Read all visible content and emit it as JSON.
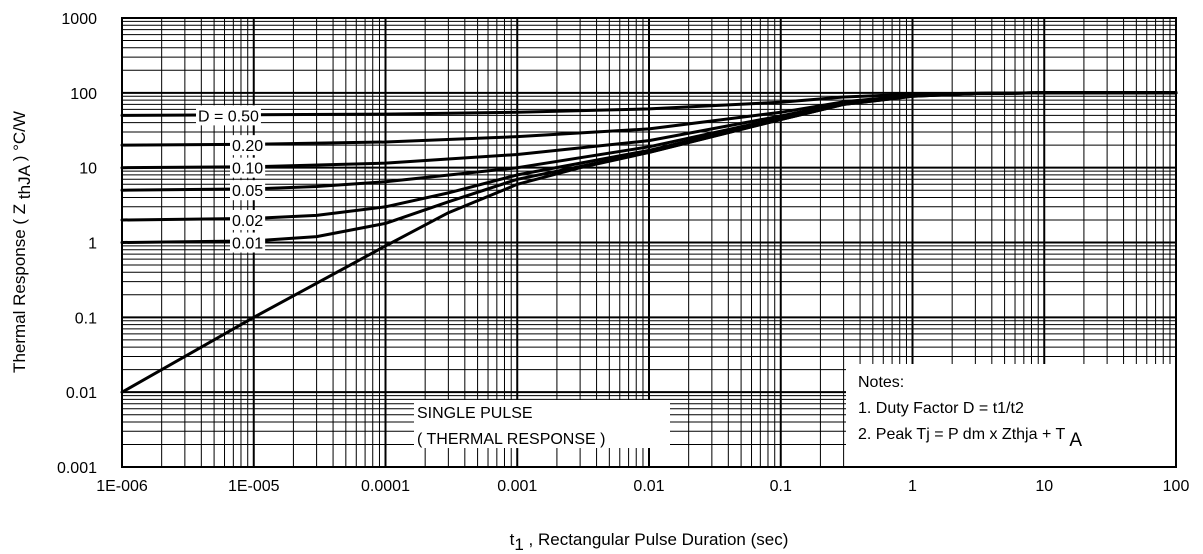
{
  "chart_data": {
    "type": "line",
    "xscale": "log",
    "yscale": "log",
    "xlim": [
      1e-06,
      100
    ],
    "ylim": [
      0.001,
      1000
    ],
    "grid": true,
    "xlabel": {
      "main": "t",
      "sub": "1",
      "rest": " , Rectangular Pulse Duration (sec)"
    },
    "ylabel": {
      "main": "Thermal Response ( Z ",
      "sub": "thJA",
      "rest": " ) °C/W"
    },
    "x_tick_labels": [
      "1E-006",
      "1E-005",
      "0.0001",
      "0.001",
      "0.01",
      "0.1",
      "1",
      "10",
      "100"
    ],
    "y_tick_labels": [
      "0.001",
      "0.01",
      "0.1",
      "1",
      "10",
      "100",
      "1000"
    ],
    "series": [
      {
        "name": "D = 0.50",
        "label": "D = 0.50",
        "x": [
          1e-06,
          1e-05,
          0.0001,
          0.001,
          0.01,
          0.1,
          0.3,
          1,
          3,
          10,
          100
        ],
        "y": [
          50,
          51,
          52,
          55,
          61,
          75,
          88,
          96,
          99,
          100,
          100
        ]
      },
      {
        "name": "0.20",
        "label": "0.20",
        "x": [
          1e-06,
          1e-05,
          0.0001,
          0.001,
          0.01,
          0.1,
          0.3,
          1,
          3,
          10,
          100
        ],
        "y": [
          20,
          20.5,
          22,
          26,
          33,
          55,
          76,
          92,
          98,
          100,
          100
        ]
      },
      {
        "name": "0.10",
        "label": "0.10",
        "x": [
          1e-06,
          1e-05,
          0.0001,
          0.001,
          0.01,
          0.1,
          0.3,
          1,
          3,
          10,
          100
        ],
        "y": [
          10,
          10.3,
          11.5,
          15,
          23,
          49,
          73,
          91,
          98,
          100,
          100
        ]
      },
      {
        "name": "0.05",
        "label": "0.05",
        "x": [
          1e-06,
          1e-05,
          3e-05,
          0.0001,
          0.001,
          0.01,
          0.1,
          0.3,
          1,
          3,
          10,
          100
        ],
        "y": [
          5,
          5.2,
          5.6,
          6.5,
          10,
          19,
          46,
          72,
          91,
          98,
          100,
          100
        ]
      },
      {
        "name": "0.02",
        "label": "0.02",
        "x": [
          1e-06,
          1e-05,
          3e-05,
          0.0001,
          0.0003,
          0.001,
          0.01,
          0.1,
          0.3,
          1,
          3,
          10,
          100
        ],
        "y": [
          2,
          2.1,
          2.3,
          3,
          4.6,
          8,
          17,
          45,
          71,
          91,
          98,
          100,
          100
        ]
      },
      {
        "name": "0.01",
        "label": "0.01",
        "x": [
          1e-06,
          1e-05,
          3e-05,
          0.0001,
          0.0003,
          0.001,
          0.01,
          0.1,
          0.3,
          1,
          3,
          10,
          100
        ],
        "y": [
          1,
          1.05,
          1.2,
          1.8,
          3.5,
          7,
          16,
          44,
          70,
          90,
          98,
          100,
          100
        ]
      },
      {
        "name": "SINGLE PULSE",
        "label": "",
        "x": [
          1e-06,
          1e-05,
          0.0001,
          0.0003,
          0.001,
          0.003,
          0.01,
          0.1,
          0.3,
          1,
          3,
          10,
          100
        ],
        "y": [
          0.01,
          0.1,
          0.9,
          2.5,
          6,
          10,
          16,
          44,
          70,
          90,
          98,
          100,
          100
        ]
      }
    ],
    "annotations": {
      "single_pulse": [
        "SINGLE PULSE",
        "( THERMAL RESPONSE )"
      ],
      "notes_title": "Notes:",
      "note1": "1. Duty Factor D = t1/t2",
      "note2_main": "2. Peak Tj = P dm x Zthja + T",
      "note2_sub": "A"
    }
  }
}
